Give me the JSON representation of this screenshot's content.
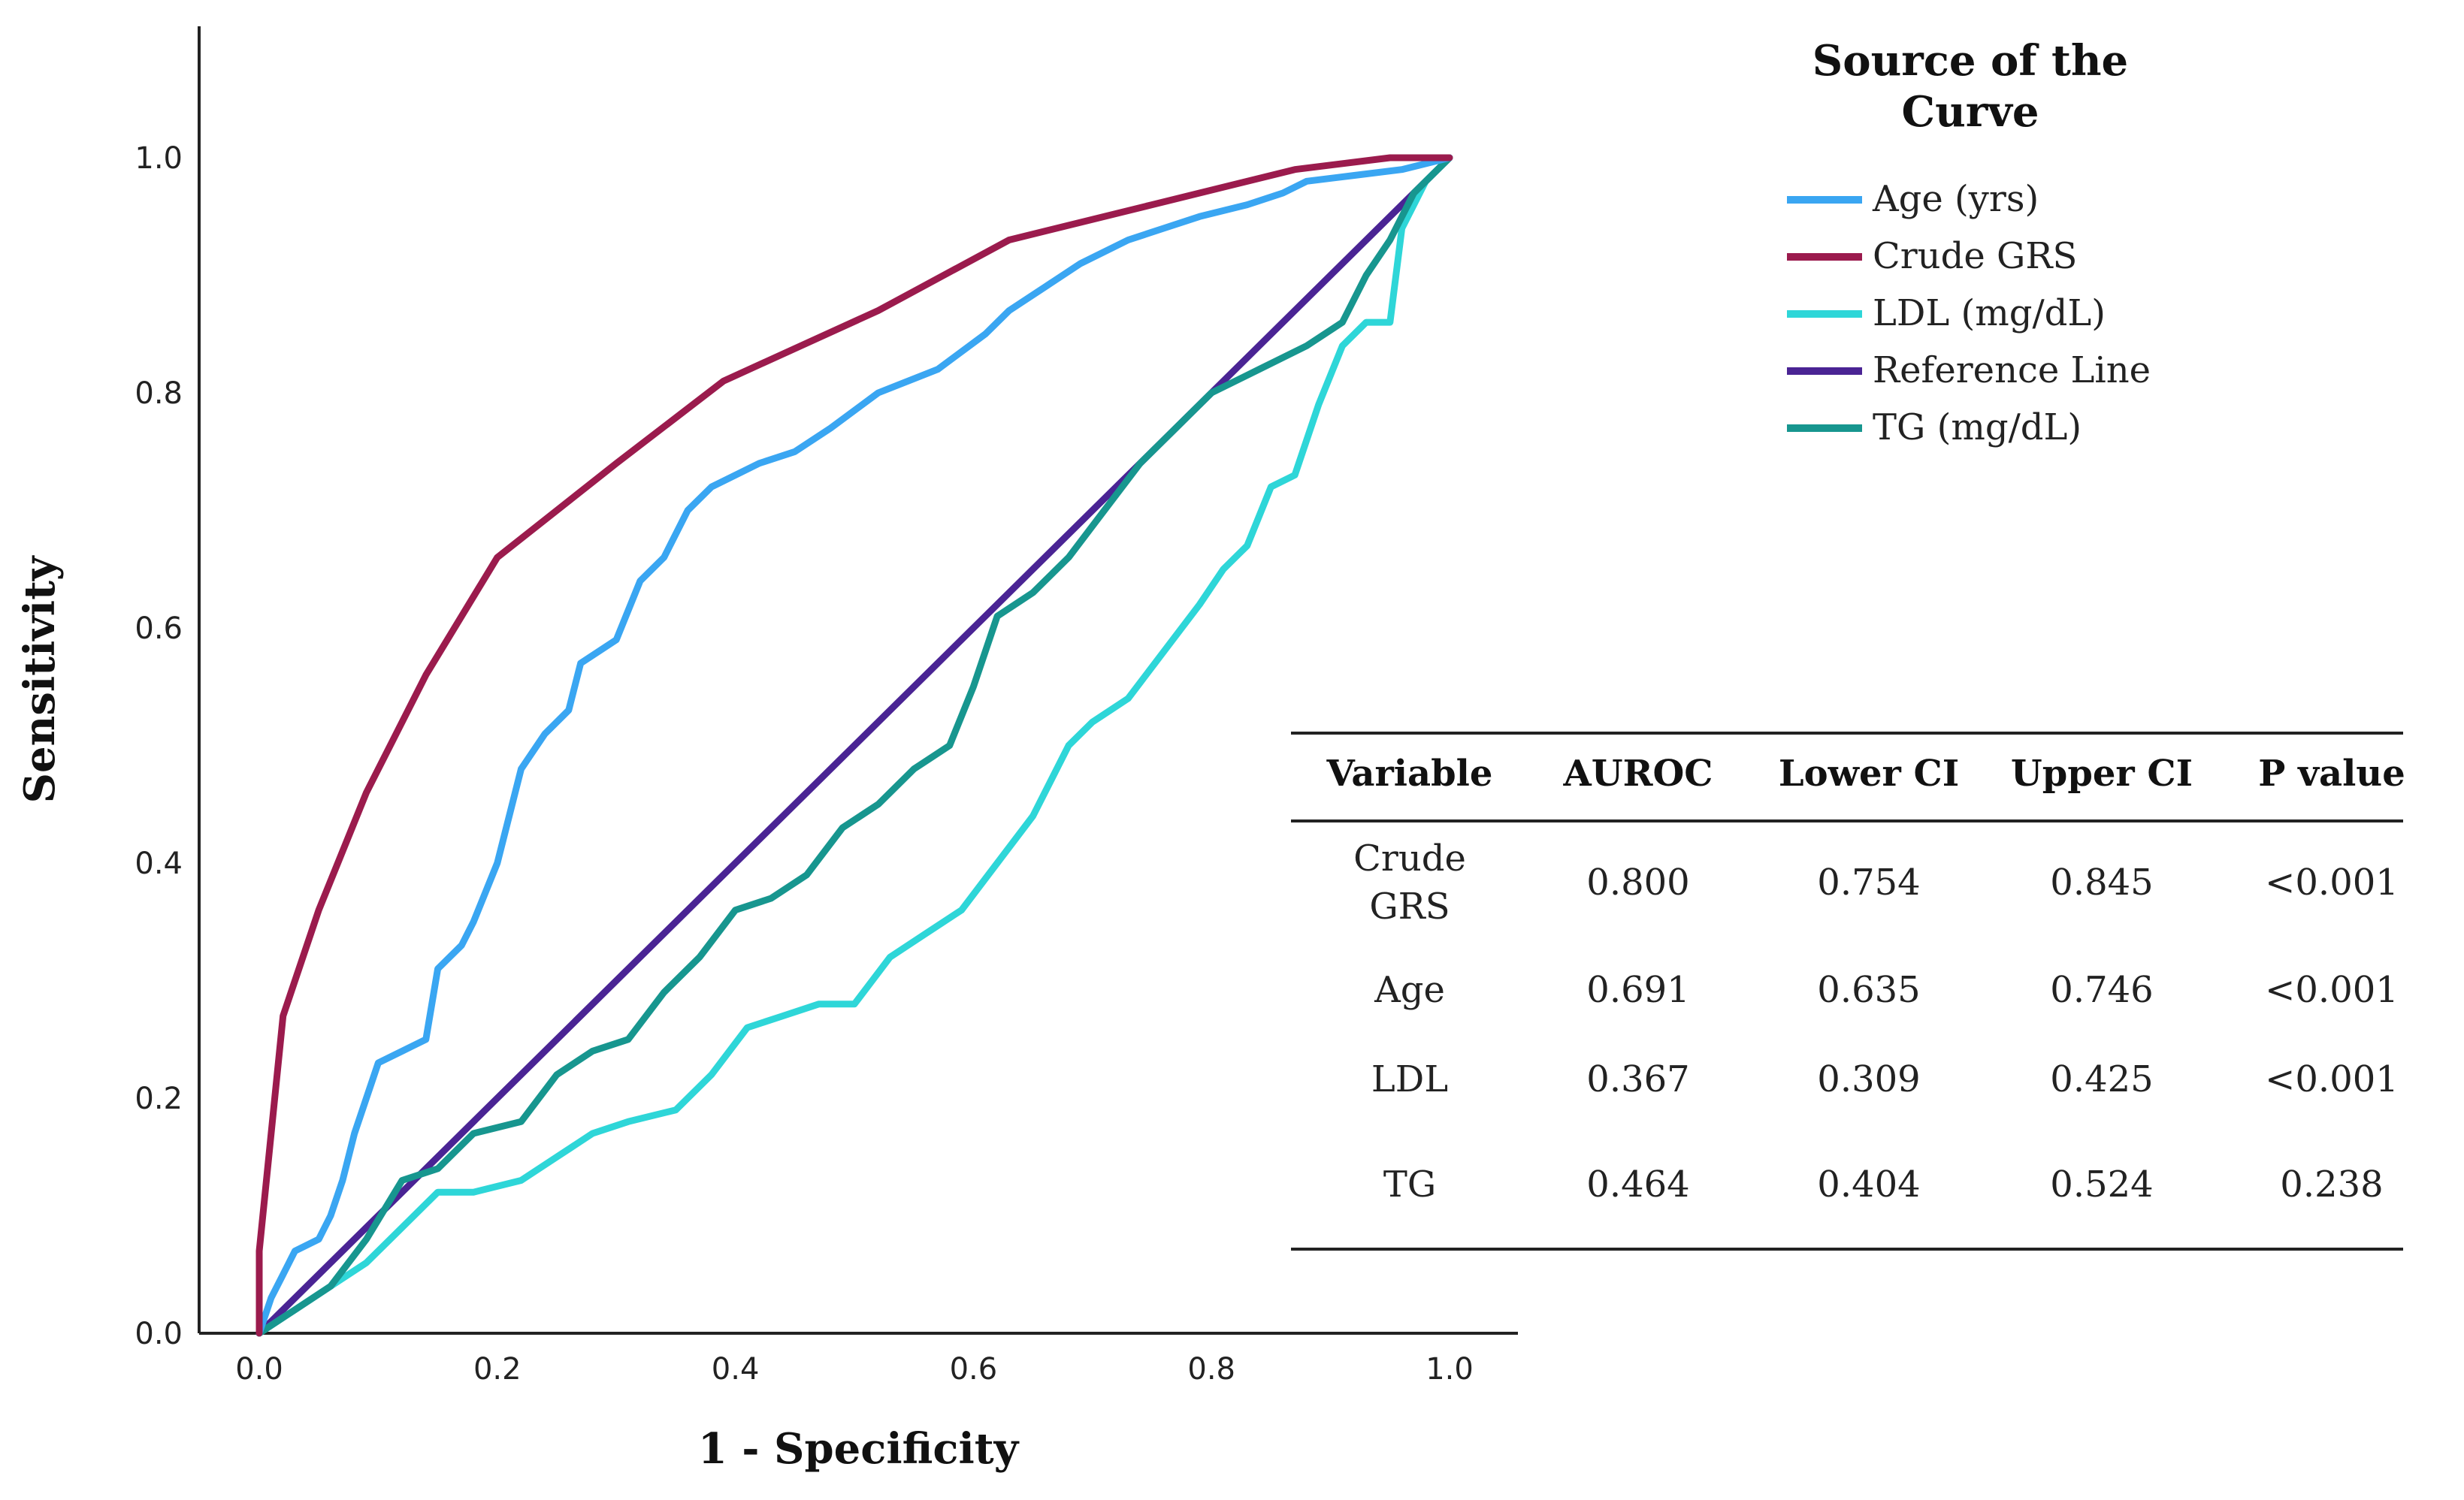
{
  "chart_data": {
    "type": "line",
    "xlabel": "1 - Specificity",
    "ylabel": "Sensitivity",
    "xlim": [
      0,
      1
    ],
    "ylim": [
      0,
      1
    ],
    "x_ticks": [
      "0.0",
      "0.2",
      "0.4",
      "0.6",
      "0.8",
      "1.0"
    ],
    "y_ticks": [
      "0.0",
      "0.2",
      "0.4",
      "0.6",
      "0.8",
      "1.0"
    ],
    "grid": false,
    "legend": {
      "title": "Source of the Curve",
      "placement": "top-right"
    },
    "series": [
      {
        "name": "Age (yrs)",
        "color": "#3aa6f2",
        "points": [
          [
            0,
            0
          ],
          [
            0.01,
            0.03
          ],
          [
            0.02,
            0.05
          ],
          [
            0.03,
            0.07
          ],
          [
            0.05,
            0.08
          ],
          [
            0.06,
            0.1
          ],
          [
            0.07,
            0.13
          ],
          [
            0.08,
            0.17
          ],
          [
            0.1,
            0.23
          ],
          [
            0.12,
            0.24
          ],
          [
            0.14,
            0.25
          ],
          [
            0.15,
            0.31
          ],
          [
            0.17,
            0.33
          ],
          [
            0.18,
            0.35
          ],
          [
            0.2,
            0.4
          ],
          [
            0.22,
            0.48
          ],
          [
            0.24,
            0.51
          ],
          [
            0.26,
            0.53
          ],
          [
            0.27,
            0.57
          ],
          [
            0.3,
            0.59
          ],
          [
            0.32,
            0.64
          ],
          [
            0.34,
            0.66
          ],
          [
            0.36,
            0.7
          ],
          [
            0.38,
            0.72
          ],
          [
            0.42,
            0.74
          ],
          [
            0.45,
            0.75
          ],
          [
            0.48,
            0.77
          ],
          [
            0.52,
            0.8
          ],
          [
            0.57,
            0.82
          ],
          [
            0.61,
            0.85
          ],
          [
            0.63,
            0.87
          ],
          [
            0.66,
            0.89
          ],
          [
            0.69,
            0.91
          ],
          [
            0.73,
            0.93
          ],
          [
            0.76,
            0.94
          ],
          [
            0.79,
            0.95
          ],
          [
            0.83,
            0.96
          ],
          [
            0.86,
            0.97
          ],
          [
            0.88,
            0.98
          ],
          [
            0.92,
            0.985
          ],
          [
            0.96,
            0.99
          ],
          [
            1,
            1
          ]
        ]
      },
      {
        "name": "Crude GRS",
        "color": "#9b1b4d",
        "points": [
          [
            0,
            0
          ],
          [
            0,
            0.07
          ],
          [
            0.02,
            0.27
          ],
          [
            0.05,
            0.36
          ],
          [
            0.09,
            0.46
          ],
          [
            0.14,
            0.56
          ],
          [
            0.2,
            0.66
          ],
          [
            0.3,
            0.74
          ],
          [
            0.39,
            0.81
          ],
          [
            0.52,
            0.87
          ],
          [
            0.63,
            0.93
          ],
          [
            0.75,
            0.96
          ],
          [
            0.87,
            0.99
          ],
          [
            0.95,
            1
          ],
          [
            1,
            1
          ]
        ]
      },
      {
        "name": "LDL (mg/dL)",
        "color": "#2ed6d8",
        "points": [
          [
            0,
            0
          ],
          [
            0.03,
            0.02
          ],
          [
            0.06,
            0.04
          ],
          [
            0.09,
            0.06
          ],
          [
            0.12,
            0.09
          ],
          [
            0.15,
            0.12
          ],
          [
            0.18,
            0.12
          ],
          [
            0.22,
            0.13
          ],
          [
            0.25,
            0.15
          ],
          [
            0.28,
            0.17
          ],
          [
            0.31,
            0.18
          ],
          [
            0.35,
            0.19
          ],
          [
            0.38,
            0.22
          ],
          [
            0.41,
            0.26
          ],
          [
            0.44,
            0.27
          ],
          [
            0.47,
            0.28
          ],
          [
            0.5,
            0.28
          ],
          [
            0.53,
            0.32
          ],
          [
            0.56,
            0.34
          ],
          [
            0.59,
            0.36
          ],
          [
            0.62,
            0.4
          ],
          [
            0.65,
            0.44
          ],
          [
            0.68,
            0.5
          ],
          [
            0.7,
            0.52
          ],
          [
            0.73,
            0.54
          ],
          [
            0.76,
            0.58
          ],
          [
            0.79,
            0.62
          ],
          [
            0.81,
            0.65
          ],
          [
            0.83,
            0.67
          ],
          [
            0.85,
            0.72
          ],
          [
            0.87,
            0.73
          ],
          [
            0.89,
            0.79
          ],
          [
            0.91,
            0.84
          ],
          [
            0.93,
            0.86
          ],
          [
            0.95,
            0.86
          ],
          [
            0.96,
            0.94
          ],
          [
            0.97,
            0.96
          ],
          [
            0.98,
            0.98
          ],
          [
            1,
            1
          ]
        ]
      },
      {
        "name": "Reference Line",
        "color": "#4a2494",
        "points": [
          [
            0,
            0
          ],
          [
            1,
            1
          ]
        ]
      },
      {
        "name": "TG (mg/dL)",
        "color": "#17968f",
        "points": [
          [
            0,
            0
          ],
          [
            0.03,
            0.02
          ],
          [
            0.06,
            0.04
          ],
          [
            0.09,
            0.08
          ],
          [
            0.12,
            0.13
          ],
          [
            0.15,
            0.14
          ],
          [
            0.18,
            0.17
          ],
          [
            0.22,
            0.18
          ],
          [
            0.25,
            0.22
          ],
          [
            0.28,
            0.24
          ],
          [
            0.31,
            0.25
          ],
          [
            0.34,
            0.29
          ],
          [
            0.37,
            0.32
          ],
          [
            0.4,
            0.36
          ],
          [
            0.43,
            0.37
          ],
          [
            0.46,
            0.39
          ],
          [
            0.49,
            0.43
          ],
          [
            0.52,
            0.45
          ],
          [
            0.55,
            0.48
          ],
          [
            0.58,
            0.5
          ],
          [
            0.6,
            0.55
          ],
          [
            0.62,
            0.61
          ],
          [
            0.65,
            0.63
          ],
          [
            0.68,
            0.66
          ],
          [
            0.71,
            0.7
          ],
          [
            0.74,
            0.74
          ],
          [
            0.77,
            0.77
          ],
          [
            0.8,
            0.8
          ],
          [
            0.84,
            0.82
          ],
          [
            0.88,
            0.84
          ],
          [
            0.91,
            0.86
          ],
          [
            0.93,
            0.9
          ],
          [
            0.95,
            0.93
          ],
          [
            0.97,
            0.97
          ],
          [
            1,
            1
          ]
        ]
      }
    ]
  },
  "stats_table": {
    "headers": [
      "Variable",
      "AUROC",
      "Lower CI",
      "Upper CI",
      "P value"
    ],
    "rows": [
      {
        "variable": [
          "Crude",
          "GRS"
        ],
        "auroc": "0.800",
        "lower_ci": "0.754",
        "upper_ci": "0.845",
        "p_value": "<0.001"
      },
      {
        "variable": [
          "Age"
        ],
        "auroc": "0.691",
        "lower_ci": "0.635",
        "upper_ci": "0.746",
        "p_value": "<0.001"
      },
      {
        "variable": [
          "LDL"
        ],
        "auroc": "0.367",
        "lower_ci": "0.309",
        "upper_ci": "0.425",
        "p_value": "<0.001"
      },
      {
        "variable": [
          "TG"
        ],
        "auroc": "0.464",
        "lower_ci": "0.404",
        "upper_ci": "0.524",
        "p_value": "0.238"
      }
    ]
  }
}
